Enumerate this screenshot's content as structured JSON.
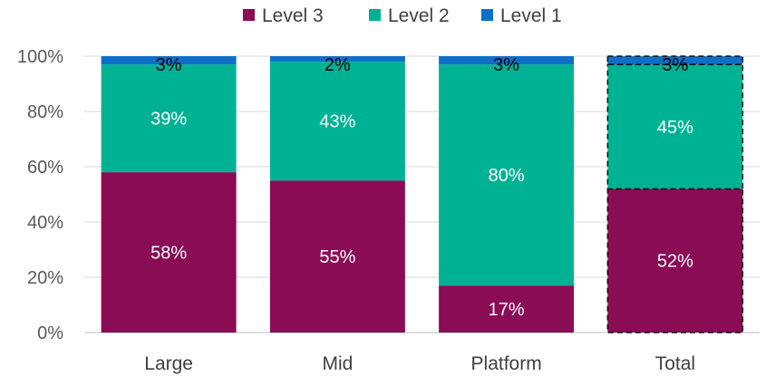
{
  "chart_data": {
    "type": "bar",
    "stacked": true,
    "percent": true,
    "categories": [
      "Large",
      "Mid",
      "Platform",
      "Total"
    ],
    "series": [
      {
        "name": "Level 3",
        "color": "#8A0C55",
        "values": [
          58,
          55,
          17,
          52
        ]
      },
      {
        "name": "Level 2",
        "color": "#00B294",
        "values": [
          39,
          43,
          80,
          45
        ]
      },
      {
        "name": "Level 1",
        "color": "#0F6FC6",
        "values": [
          3,
          2,
          3,
          3
        ]
      }
    ],
    "data_label_colors": {
      "Level 3": "#FFFFFF",
      "Level 2": "#FFFFFF",
      "Level 1": "#000000"
    },
    "ylim": [
      0,
      100
    ],
    "yticks": [
      "0%",
      "20%",
      "40%",
      "60%",
      "80%",
      "100%"
    ],
    "grid": true,
    "legend_position": "top",
    "highlighted_category": "Total",
    "title": "",
    "xlabel": "",
    "ylabel": ""
  }
}
